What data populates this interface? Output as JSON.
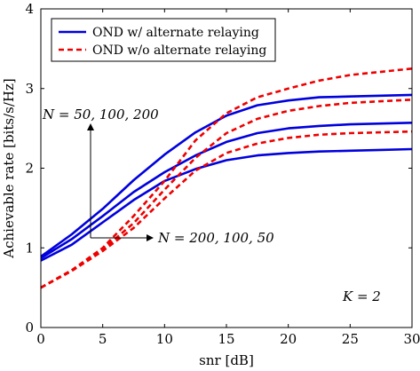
{
  "chart_data": {
    "type": "line",
    "xlabel": "snr [dB]",
    "ylabel": "Achievable rate [bits/s/Hz]",
    "xlim": [
      0,
      30
    ],
    "ylim": [
      0,
      4
    ],
    "xticks": [
      0,
      5,
      10,
      15,
      20,
      25,
      30
    ],
    "yticks": [
      0,
      1,
      2,
      3,
      4
    ],
    "grid": false,
    "legend_position": "top-left",
    "legend": [
      {
        "label": "OND w/ alternate relaying",
        "color": "#0000dd",
        "style": "solid"
      },
      {
        "label": "OND w/o alternate relaying",
        "color": "#ee0000",
        "style": "dashed"
      }
    ],
    "annotations": {
      "top": "N = 50, 100, 200",
      "bottom": "N = 200, 100, 50",
      "k_label": "K = 2"
    },
    "x": [
      0,
      2.5,
      5,
      7.5,
      10,
      12.5,
      15,
      17.5,
      20,
      22.5,
      25,
      27.5,
      30
    ],
    "series": [
      {
        "name": "OND w/ alternate relaying",
        "N": 200,
        "style": "solid",
        "color": "#0000dd",
        "values": [
          0.89,
          1.17,
          1.49,
          1.85,
          2.17,
          2.45,
          2.66,
          2.79,
          2.85,
          2.89,
          2.9,
          2.91,
          2.92
        ]
      },
      {
        "name": "OND w/ alternate relaying",
        "N": 100,
        "style": "solid",
        "color": "#0000dd",
        "values": [
          0.87,
          1.11,
          1.4,
          1.7,
          1.95,
          2.16,
          2.33,
          2.44,
          2.5,
          2.53,
          2.55,
          2.56,
          2.57
        ]
      },
      {
        "name": "OND w/ alternate relaying",
        "N": 50,
        "style": "solid",
        "color": "#0000dd",
        "values": [
          0.84,
          1.04,
          1.32,
          1.6,
          1.84,
          1.99,
          2.1,
          2.16,
          2.19,
          2.21,
          2.22,
          2.23,
          2.24
        ]
      },
      {
        "name": "OND w/o alternate relaying",
        "N": 200,
        "style": "dashed",
        "color": "#ee0000",
        "values": [
          0.5,
          0.72,
          1.0,
          1.4,
          1.84,
          2.35,
          2.69,
          2.89,
          3.0,
          3.1,
          3.17,
          3.21,
          3.25
        ]
      },
      {
        "name": "OND w/o alternate relaying",
        "N": 100,
        "style": "dashed",
        "color": "#ee0000",
        "values": [
          0.5,
          0.72,
          0.98,
          1.31,
          1.73,
          2.13,
          2.44,
          2.62,
          2.72,
          2.78,
          2.82,
          2.84,
          2.86
        ]
      },
      {
        "name": "OND w/o alternate relaying",
        "N": 50,
        "style": "dashed",
        "color": "#ee0000",
        "values": [
          0.5,
          0.71,
          0.96,
          1.25,
          1.62,
          1.97,
          2.19,
          2.31,
          2.38,
          2.42,
          2.44,
          2.45,
          2.46
        ]
      }
    ]
  }
}
